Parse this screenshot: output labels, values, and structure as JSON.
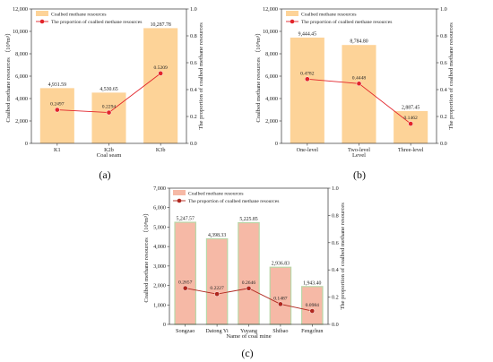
{
  "chart_data": [
    {
      "type": "bar",
      "panel_label": "(a)",
      "bar_color": "#fdd398",
      "line_color": "#e2242a",
      "xlabel": "Coal seam",
      "ylabel": "Coalbed methane resources （10⁸m³）",
      "y2label": "The proportion of coalbed methane resources",
      "ylim": [
        0,
        12000
      ],
      "yticks": [
        "0",
        "2,000",
        "4,000",
        "6,000",
        "8,000",
        "10,000",
        "12,000"
      ],
      "y2lim": [
        0,
        1.0
      ],
      "y2ticks": [
        "0.0",
        "0.2",
        "0.4",
        "0.6",
        "0.8",
        "1.0"
      ],
      "categories": [
        "K1",
        "K2b",
        "K3b"
      ],
      "legend": [
        "Coalbed methane resources",
        "The proportion of coalbed methane resources"
      ],
      "series": [
        {
          "name": "Coalbed methane resources",
          "kind": "bar",
          "values": [
            4931.59,
            4530.65,
            10287.78
          ],
          "labels": [
            "4,931.59",
            "4,530.65",
            "10,287.78"
          ]
        },
        {
          "name": "The proportion of coalbed methane resources",
          "kind": "line",
          "axis": "right",
          "values": [
            0.2497,
            0.2294,
            0.5209
          ],
          "labels": [
            "0.2497",
            "0.2294",
            "0.5209"
          ]
        }
      ]
    },
    {
      "type": "bar",
      "panel_label": "(b)",
      "bar_color": "#fdd398",
      "line_color": "#e2242a",
      "xlabel": "Level",
      "ylabel": "Coalbed methane resources （10⁸m³）",
      "y2label": "The proportion of coalbed methane resources",
      "ylim": [
        0,
        12000
      ],
      "yticks": [
        "0",
        "2,000",
        "4,000",
        "6,000",
        "8,000",
        "10,000",
        "12,000"
      ],
      "y2lim": [
        0,
        1.0
      ],
      "y2ticks": [
        "0.0",
        "0.2",
        "0.4",
        "0.6",
        "0.8",
        "1.0"
      ],
      "categories": [
        "One-level",
        "Two-level",
        "Three-level"
      ],
      "legend": [
        "Coalbed methane resources",
        "The proportion of coalbed methane resources"
      ],
      "series": [
        {
          "name": "Coalbed methane resources",
          "kind": "bar",
          "values": [
            9444.45,
            8784.8,
            2887.45
          ],
          "labels": [
            "9,444.45",
            "8,784.80",
            "2,887.45"
          ]
        },
        {
          "name": "The proportion of coalbed methane resources",
          "kind": "line",
          "axis": "right",
          "values": [
            0.4782,
            0.4448,
            0.1462
          ],
          "labels": [
            "0.4782",
            "0.4448",
            "0.1462"
          ]
        }
      ]
    },
    {
      "type": "bar",
      "panel_label": "(c)",
      "bar_color": "#f6b9a6",
      "bar_edge_color": "#b9d7a8",
      "line_color": "#b0271e",
      "xlabel": "Name of coal mine",
      "ylabel": "Coalbed methane resources （10⁸m³）",
      "y2label": "The proportion of coalbed methane resources",
      "ylim": [
        0,
        7000
      ],
      "yticks": [
        "0",
        "1,000",
        "2,000",
        "3,000",
        "4,000",
        "5,000",
        "6,000",
        "7,000"
      ],
      "y2lim": [
        0,
        1.0
      ],
      "y2ticks": [
        "0.0",
        "0.2",
        "0.4",
        "0.6",
        "0.8",
        "1.0"
      ],
      "categories": [
        "Songzao",
        "Datong Yi",
        "Yuyang",
        "Shibao",
        "Fengchun"
      ],
      "legend": [
        "Coalbed methane resources",
        "The proportion of coalbed methane resources"
      ],
      "series": [
        {
          "name": "Coalbed methane resources",
          "kind": "bar",
          "values": [
            5247.57,
            4398.33,
            5225.85,
            2936.83,
            1943.4
          ],
          "labels": [
            "5,247.57",
            "4,398.33",
            "5,225.85",
            "2,936.83",
            "1,943.40"
          ]
        },
        {
          "name": "The proportion of coalbed methane resources",
          "kind": "line",
          "axis": "right",
          "values": [
            0.2657,
            0.2227,
            0.2646,
            0.1487,
            0.0984
          ],
          "labels": [
            "0.2657",
            "0.2227",
            "0.2646",
            "0.1487",
            "0.0984"
          ]
        }
      ]
    }
  ]
}
